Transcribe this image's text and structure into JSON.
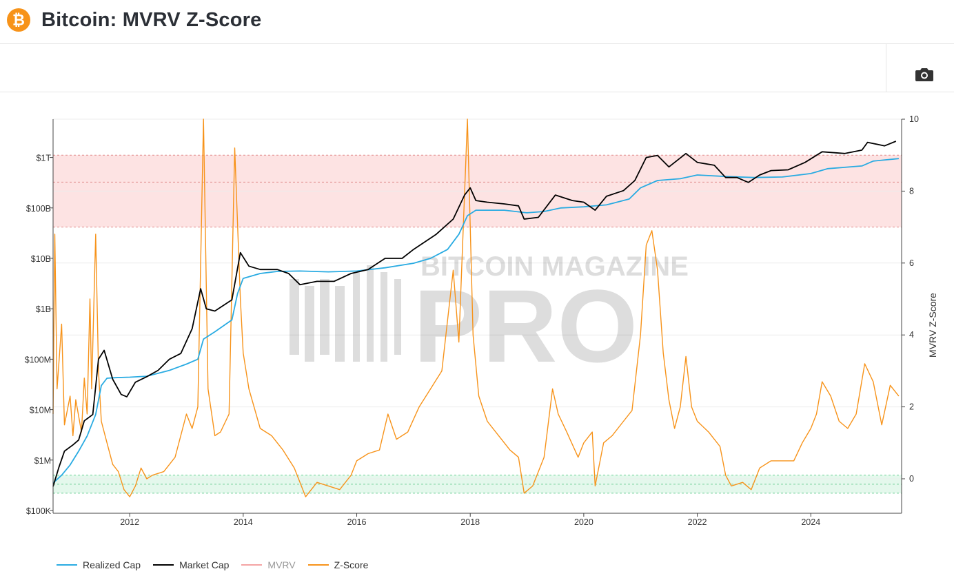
{
  "header": {
    "title": "Bitcoin: MVRV Z-Score",
    "logo_icon": "bitcoin-icon",
    "logo_color": "#f7931a"
  },
  "toolbar": {
    "camera_icon": "camera-icon"
  },
  "watermark": {
    "line1": "BITCOIN MAGAZINE",
    "line2": "PRO"
  },
  "chart_data": {
    "type": "line",
    "title": "Bitcoin: MVRV Z-Score",
    "x_ticks": [
      "2012",
      "2014",
      "2016",
      "2018",
      "2020",
      "2022",
      "2024"
    ],
    "xlim": [
      2010.65,
      2025.6
    ],
    "y_left": {
      "scale": "log",
      "range": [
        100000,
        6000000000000
      ],
      "ticks": [
        "$100K",
        "$1M",
        "$10M",
        "$100M",
        "$1B",
        "$10B",
        "$100B",
        "$1T"
      ]
    },
    "y_right": {
      "label": "MVRV Z-Score",
      "range": [
        -1,
        10
      ],
      "ticks": [
        "0",
        "2",
        "4",
        "6",
        "8",
        "10"
      ]
    },
    "zones": [
      {
        "name": "red-zone",
        "z_from": 7,
        "z_to": 9,
        "color": "#fde3e3",
        "inner_line": 8.25
      },
      {
        "name": "green-zone",
        "z_from": -0.4,
        "z_to": 0.1,
        "color": "#e4f8ec",
        "inner_line": -0.15
      }
    ],
    "legend_position": "bottom-left",
    "series": [
      {
        "name": "Realized Cap",
        "axis": "left",
        "color": "#29abe2",
        "points": [
          [
            2010.65,
            350000
          ],
          [
            2010.8,
            500000
          ],
          [
            2010.95,
            800000
          ],
          [
            2011.1,
            1500000
          ],
          [
            2011.25,
            3000000
          ],
          [
            2011.4,
            8000000
          ],
          [
            2011.5,
            30000000
          ],
          [
            2011.6,
            42000000
          ],
          [
            2011.75,
            43000000
          ],
          [
            2012.0,
            44000000
          ],
          [
            2012.3,
            46000000
          ],
          [
            2012.7,
            60000000
          ],
          [
            2013.0,
            80000000
          ],
          [
            2013.2,
            100000000
          ],
          [
            2013.3,
            250000000
          ],
          [
            2013.5,
            350000000
          ],
          [
            2013.8,
            600000000
          ],
          [
            2013.9,
            2000000000
          ],
          [
            2014.0,
            4000000000
          ],
          [
            2014.3,
            5000000000
          ],
          [
            2014.6,
            5500000000
          ],
          [
            2015.0,
            5600000000
          ],
          [
            2015.5,
            5400000000
          ],
          [
            2016.0,
            5600000000
          ],
          [
            2016.5,
            6500000000
          ],
          [
            2017.0,
            8000000000
          ],
          [
            2017.3,
            10000000000
          ],
          [
            2017.6,
            15000000000
          ],
          [
            2017.8,
            30000000000
          ],
          [
            2017.95,
            70000000000
          ],
          [
            2018.1,
            90000000000
          ],
          [
            2018.6,
            90000000000
          ],
          [
            2019.0,
            80000000000
          ],
          [
            2019.3,
            85000000000
          ],
          [
            2019.6,
            100000000000
          ],
          [
            2020.0,
            105000000000
          ],
          [
            2020.4,
            115000000000
          ],
          [
            2020.8,
            150000000000
          ],
          [
            2021.0,
            250000000000
          ],
          [
            2021.3,
            350000000000
          ],
          [
            2021.7,
            380000000000
          ],
          [
            2022.0,
            450000000000
          ],
          [
            2022.5,
            420000000000
          ],
          [
            2023.0,
            400000000000
          ],
          [
            2023.5,
            410000000000
          ],
          [
            2024.0,
            480000000000
          ],
          [
            2024.3,
            600000000000
          ],
          [
            2024.9,
            680000000000
          ],
          [
            2025.1,
            850000000000
          ],
          [
            2025.55,
            950000000000
          ]
        ]
      },
      {
        "name": "Market Cap",
        "axis": "left",
        "color": "#000000",
        "points": [
          [
            2010.65,
            300000
          ],
          [
            2010.75,
            700000
          ],
          [
            2010.85,
            1500000
          ],
          [
            2011.0,
            2000000
          ],
          [
            2011.1,
            2500000
          ],
          [
            2011.2,
            6000000
          ],
          [
            2011.35,
            8000000
          ],
          [
            2011.45,
            100000000
          ],
          [
            2011.55,
            150000000
          ],
          [
            2011.7,
            40000000
          ],
          [
            2011.85,
            20000000
          ],
          [
            2011.95,
            18000000
          ],
          [
            2012.1,
            35000000
          ],
          [
            2012.3,
            45000000
          ],
          [
            2012.5,
            60000000
          ],
          [
            2012.7,
            100000000
          ],
          [
            2012.9,
            130000000
          ],
          [
            2013.1,
            400000000
          ],
          [
            2013.25,
            2500000000
          ],
          [
            2013.35,
            1000000000
          ],
          [
            2013.5,
            900000000
          ],
          [
            2013.8,
            1500000000
          ],
          [
            2013.95,
            13000000000
          ],
          [
            2014.1,
            7000000000
          ],
          [
            2014.3,
            6000000000
          ],
          [
            2014.6,
            6000000000
          ],
          [
            2014.8,
            5000000000
          ],
          [
            2015.0,
            3000000000
          ],
          [
            2015.3,
            3500000000
          ],
          [
            2015.6,
            3500000000
          ],
          [
            2015.9,
            5000000000
          ],
          [
            2016.2,
            6000000000
          ],
          [
            2016.5,
            10000000000
          ],
          [
            2016.8,
            10000000000
          ],
          [
            2017.0,
            15000000000
          ],
          [
            2017.4,
            30000000000
          ],
          [
            2017.7,
            60000000000
          ],
          [
            2017.9,
            180000000000
          ],
          [
            2018.0,
            250000000000
          ],
          [
            2018.1,
            140000000000
          ],
          [
            2018.3,
            130000000000
          ],
          [
            2018.6,
            120000000000
          ],
          [
            2018.85,
            110000000000
          ],
          [
            2018.95,
            60000000000
          ],
          [
            2019.2,
            65000000000
          ],
          [
            2019.5,
            180000000000
          ],
          [
            2019.8,
            140000000000
          ],
          [
            2020.0,
            130000000000
          ],
          [
            2020.2,
            90000000000
          ],
          [
            2020.4,
            170000000000
          ],
          [
            2020.7,
            220000000000
          ],
          [
            2020.9,
            350000000000
          ],
          [
            2021.1,
            1000000000000
          ],
          [
            2021.3,
            1100000000000
          ],
          [
            2021.5,
            650000000000
          ],
          [
            2021.8,
            1200000000000
          ],
          [
            2022.0,
            800000000000
          ],
          [
            2022.3,
            700000000000
          ],
          [
            2022.5,
            400000000000
          ],
          [
            2022.7,
            400000000000
          ],
          [
            2022.9,
            320000000000
          ],
          [
            2023.1,
            450000000000
          ],
          [
            2023.3,
            550000000000
          ],
          [
            2023.6,
            570000000000
          ],
          [
            2023.9,
            800000000000
          ],
          [
            2024.2,
            1300000000000
          ],
          [
            2024.6,
            1200000000000
          ],
          [
            2024.9,
            1400000000000
          ],
          [
            2025.0,
            2000000000000
          ],
          [
            2025.3,
            1700000000000
          ],
          [
            2025.5,
            2100000000000
          ]
        ]
      },
      {
        "name": "MVRV",
        "axis": "right",
        "color": "#f4a3a3",
        "visible": false,
        "points": []
      },
      {
        "name": "Z-Score",
        "axis": "right",
        "color": "#f7931a",
        "points": [
          [
            2010.65,
            1.8
          ],
          [
            2010.68,
            6.8
          ],
          [
            2010.72,
            2.5
          ],
          [
            2010.8,
            4.3
          ],
          [
            2010.85,
            1.5
          ],
          [
            2010.95,
            2.3
          ],
          [
            2011.0,
            1.2
          ],
          [
            2011.05,
            2.2
          ],
          [
            2011.15,
            1.3
          ],
          [
            2011.2,
            2.8
          ],
          [
            2011.25,
            1.8
          ],
          [
            2011.3,
            5.0
          ],
          [
            2011.33,
            2.5
          ],
          [
            2011.4,
            6.8
          ],
          [
            2011.45,
            3.0
          ],
          [
            2011.5,
            1.6
          ],
          [
            2011.6,
            1.0
          ],
          [
            2011.7,
            0.4
          ],
          [
            2011.8,
            0.2
          ],
          [
            2011.9,
            -0.3
          ],
          [
            2012.0,
            -0.5
          ],
          [
            2012.1,
            -0.2
          ],
          [
            2012.2,
            0.3
          ],
          [
            2012.3,
            0.0
          ],
          [
            2012.4,
            0.1
          ],
          [
            2012.6,
            0.2
          ],
          [
            2012.8,
            0.6
          ],
          [
            2013.0,
            1.8
          ],
          [
            2013.1,
            1.4
          ],
          [
            2013.2,
            2.0
          ],
          [
            2013.3,
            10.0
          ],
          [
            2013.38,
            2.5
          ],
          [
            2013.5,
            1.2
          ],
          [
            2013.6,
            1.3
          ],
          [
            2013.75,
            1.8
          ],
          [
            2013.85,
            9.2
          ],
          [
            2013.95,
            5.0
          ],
          [
            2014.0,
            3.5
          ],
          [
            2014.1,
            2.5
          ],
          [
            2014.3,
            1.4
          ],
          [
            2014.5,
            1.2
          ],
          [
            2014.7,
            0.8
          ],
          [
            2014.9,
            0.3
          ],
          [
            2015.1,
            -0.5
          ],
          [
            2015.3,
            -0.1
          ],
          [
            2015.5,
            -0.2
          ],
          [
            2015.7,
            -0.3
          ],
          [
            2015.9,
            0.1
          ],
          [
            2016.0,
            0.5
          ],
          [
            2016.2,
            0.7
          ],
          [
            2016.4,
            0.8
          ],
          [
            2016.55,
            1.8
          ],
          [
            2016.7,
            1.1
          ],
          [
            2016.9,
            1.3
          ],
          [
            2017.1,
            2.0
          ],
          [
            2017.3,
            2.5
          ],
          [
            2017.5,
            3.0
          ],
          [
            2017.7,
            5.8
          ],
          [
            2017.8,
            3.8
          ],
          [
            2017.95,
            10.0
          ],
          [
            2018.05,
            4.0
          ],
          [
            2018.15,
            2.3
          ],
          [
            2018.3,
            1.6
          ],
          [
            2018.5,
            1.2
          ],
          [
            2018.7,
            0.8
          ],
          [
            2018.85,
            0.6
          ],
          [
            2018.95,
            -0.4
          ],
          [
            2019.1,
            -0.2
          ],
          [
            2019.3,
            0.6
          ],
          [
            2019.45,
            2.5
          ],
          [
            2019.55,
            1.8
          ],
          [
            2019.7,
            1.3
          ],
          [
            2019.9,
            0.6
          ],
          [
            2020.0,
            1.0
          ],
          [
            2020.15,
            1.3
          ],
          [
            2020.2,
            -0.2
          ],
          [
            2020.35,
            1.0
          ],
          [
            2020.5,
            1.2
          ],
          [
            2020.7,
            1.6
          ],
          [
            2020.85,
            1.9
          ],
          [
            2021.0,
            4.0
          ],
          [
            2021.1,
            6.5
          ],
          [
            2021.2,
            6.9
          ],
          [
            2021.3,
            5.8
          ],
          [
            2021.4,
            3.5
          ],
          [
            2021.5,
            2.2
          ],
          [
            2021.6,
            1.4
          ],
          [
            2021.7,
            2.0
          ],
          [
            2021.8,
            3.4
          ],
          [
            2021.9,
            2.0
          ],
          [
            2022.0,
            1.6
          ],
          [
            2022.2,
            1.3
          ],
          [
            2022.4,
            0.9
          ],
          [
            2022.5,
            0.1
          ],
          [
            2022.6,
            -0.2
          ],
          [
            2022.8,
            -0.1
          ],
          [
            2022.95,
            -0.3
          ],
          [
            2023.1,
            0.3
          ],
          [
            2023.3,
            0.5
          ],
          [
            2023.5,
            0.5
          ],
          [
            2023.7,
            0.5
          ],
          [
            2023.85,
            1.0
          ],
          [
            2024.0,
            1.4
          ],
          [
            2024.1,
            1.8
          ],
          [
            2024.2,
            2.7
          ],
          [
            2024.35,
            2.3
          ],
          [
            2024.5,
            1.6
          ],
          [
            2024.65,
            1.4
          ],
          [
            2024.8,
            1.8
          ],
          [
            2024.95,
            3.2
          ],
          [
            2025.1,
            2.7
          ],
          [
            2025.25,
            1.5
          ],
          [
            2025.4,
            2.6
          ],
          [
            2025.55,
            2.3
          ]
        ]
      }
    ]
  }
}
